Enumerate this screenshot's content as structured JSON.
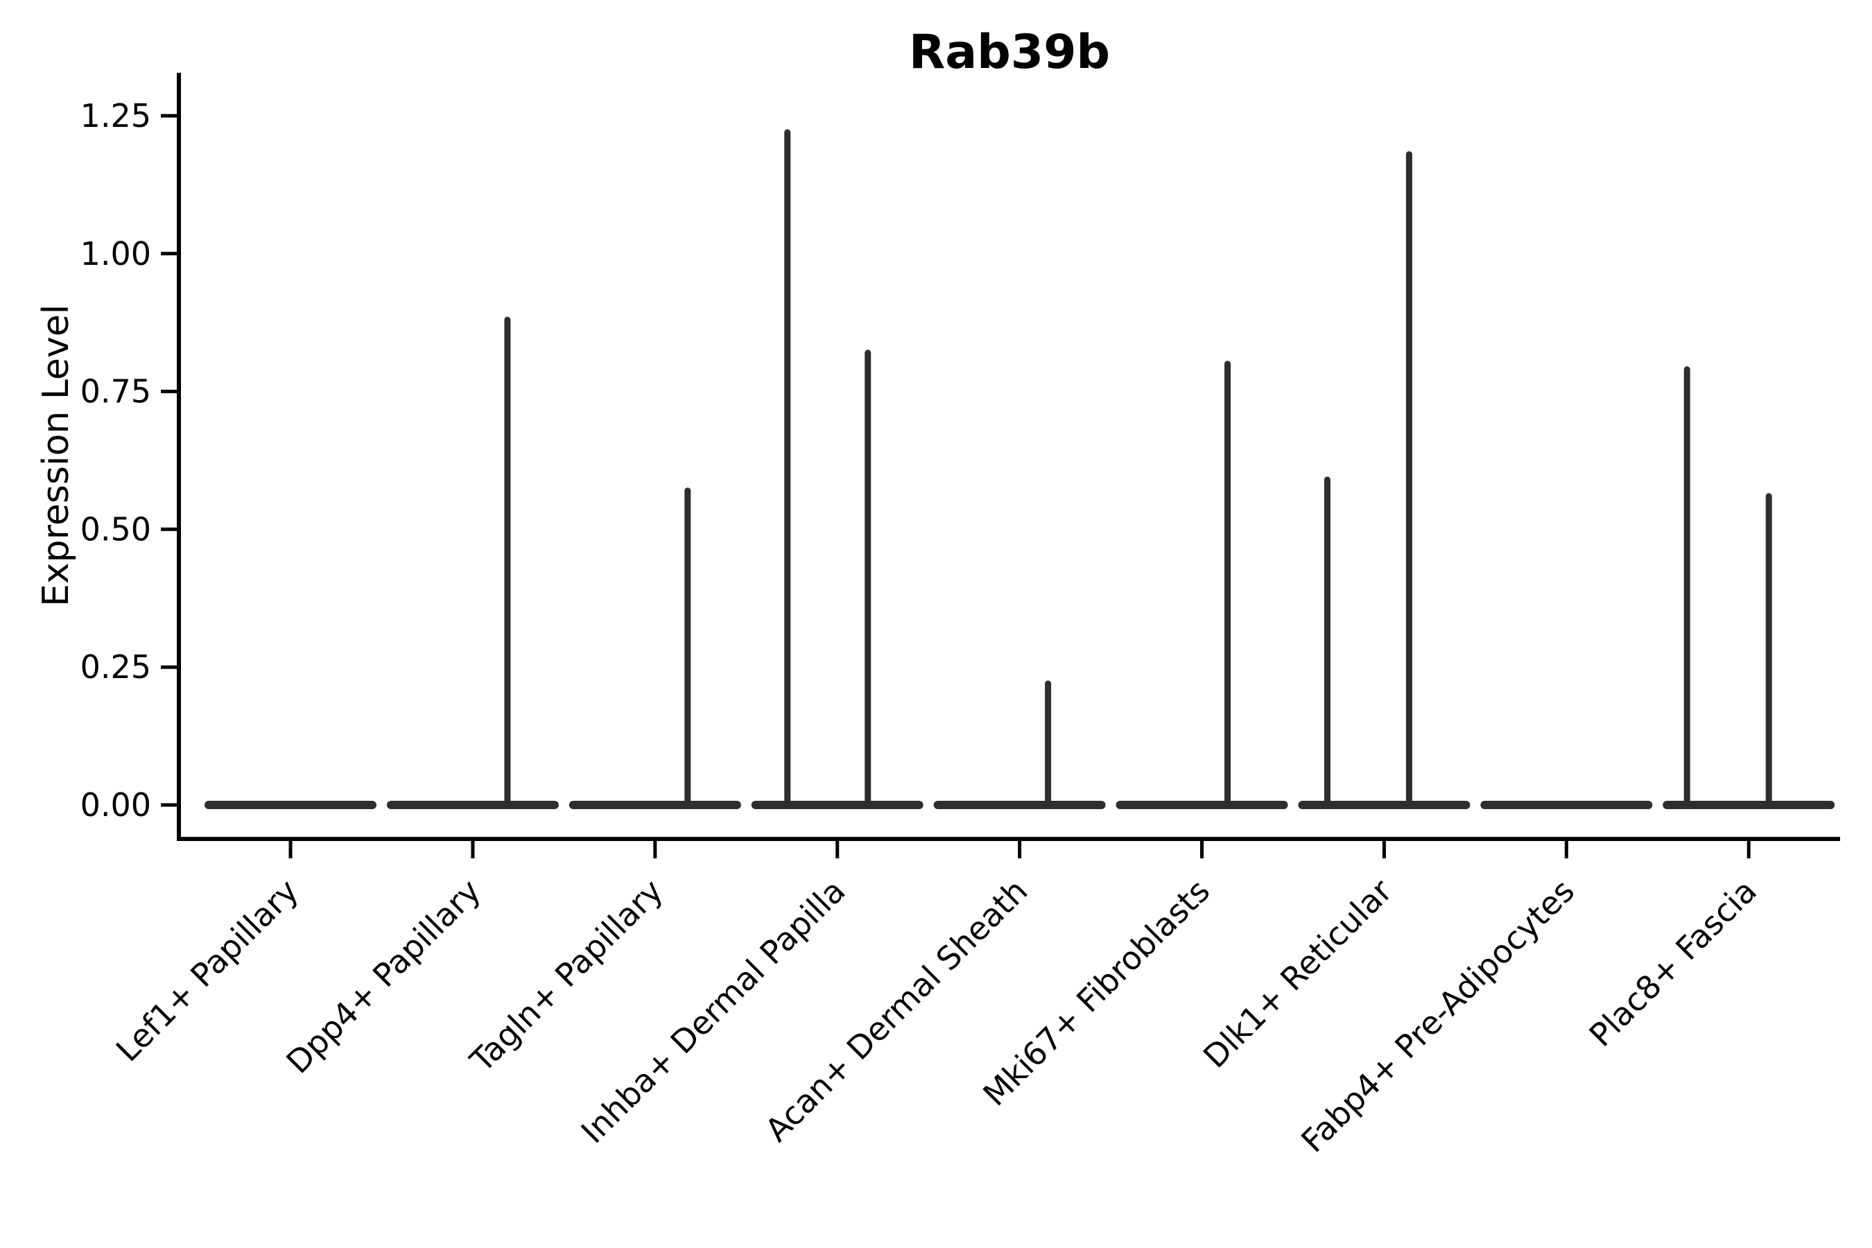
{
  "chart_data": {
    "type": "violin",
    "title": "Rab39b",
    "xlabel": "",
    "ylabel": "Expression Level",
    "categories": [
      "Lef1+ Papillary",
      "Dpp4+ Papillary",
      "Tagln+ Papillary",
      "Inhba+ Dermal Papilla",
      "Acan+ Dermal Sheath",
      "Mki67+ Fibroblasts",
      "Dlk1+ Reticular",
      "Fabp4+ Pre-Adipocytes",
      "Plac8+ Fascia"
    ],
    "ytick_values": [
      0.0,
      0.25,
      0.5,
      0.75,
      1.0,
      1.25
    ],
    "ytick_labels": [
      "0.00",
      "0.25",
      "0.50",
      "0.75",
      "1.00",
      "1.25"
    ],
    "ylim": [
      -0.07,
      1.31
    ],
    "grid": false,
    "legend": null,
    "series": [
      {
        "category": "Lef1+ Papillary",
        "baseline_value": 0,
        "spikes": []
      },
      {
        "category": "Dpp4+ Papillary",
        "baseline_value": 0,
        "spikes": [
          {
            "value": 0.88,
            "dx": 50
          }
        ]
      },
      {
        "category": "Tagln+ Papillary",
        "baseline_value": 0,
        "spikes": [
          {
            "value": 0.57,
            "dx": 47
          }
        ]
      },
      {
        "category": "Inhba+ Dermal Papilla",
        "baseline_value": 0,
        "spikes": [
          {
            "value": 1.22,
            "dx": -72
          },
          {
            "value": 0.82,
            "dx": 44
          }
        ]
      },
      {
        "category": "Acan+ Dermal Sheath",
        "baseline_value": 0,
        "spikes": [
          {
            "value": 0.22,
            "dx": 41
          }
        ]
      },
      {
        "category": "Mki67+ Fibroblasts",
        "baseline_value": 0,
        "spikes": [
          {
            "value": 0.8,
            "dx": 37
          }
        ]
      },
      {
        "category": "Dlk1+ Reticular",
        "baseline_value": 0,
        "spikes": [
          {
            "value": 0.59,
            "dx": -82
          },
          {
            "value": 1.18,
            "dx": 36
          }
        ]
      },
      {
        "category": "Fabp4+ Pre-Adipocytes",
        "baseline_value": 0,
        "spikes": []
      },
      {
        "category": "Plac8+ Fascia",
        "baseline_value": 0,
        "spikes": [
          {
            "value": 0.79,
            "dx": -89
          },
          {
            "value": 0.56,
            "dx": 29
          }
        ]
      }
    ],
    "colors": {
      "violin": "#2e2e2e",
      "axis": "#000000",
      "text": "#000000",
      "background": "#ffffff"
    }
  }
}
